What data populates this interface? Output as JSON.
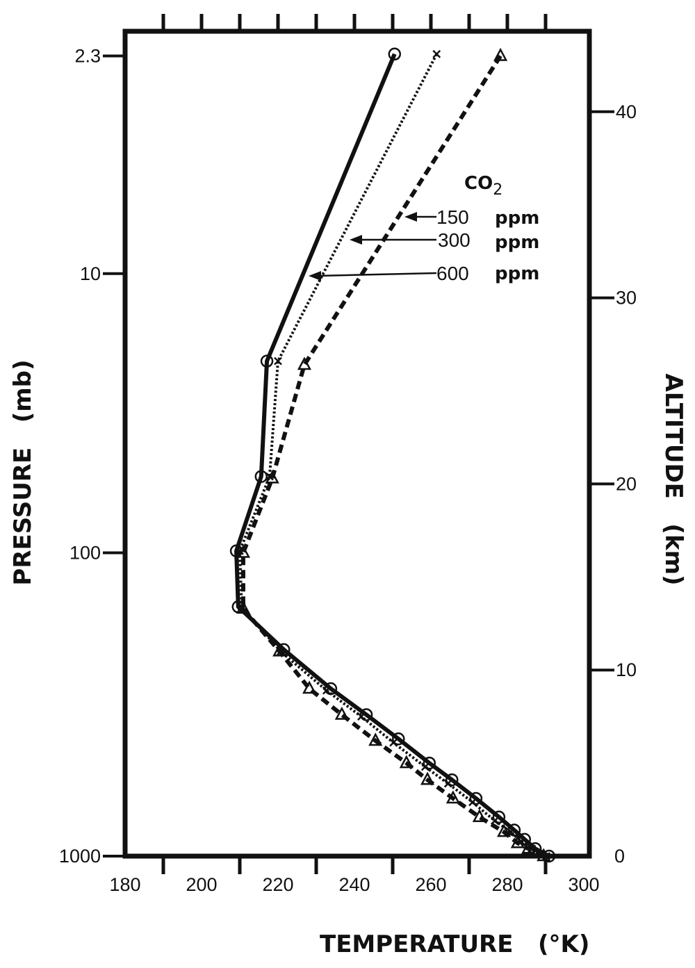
{
  "chart_data": {
    "type": "line",
    "xlabel": "TEMPERATURE   (°K)",
    "ylabel": "PRESSURE   (mb)",
    "y2label": "ALTITUDE   (km)",
    "xlim": [
      180,
      300
    ],
    "x_ticks": [
      180,
      200,
      220,
      240,
      260,
      280,
      300
    ],
    "y2lim": [
      0,
      45
    ],
    "y2_ticks": [
      0,
      10,
      20,
      30,
      40
    ],
    "pressure_ticks": [
      {
        "label": "2.3",
        "altitude_km": 43.0
      },
      {
        "label": "10",
        "altitude_km": 31.3
      },
      {
        "label": "100",
        "altitude_km": 16.3
      },
      {
        "label": "1000",
        "altitude_km": 0
      }
    ],
    "legend_title": "CO",
    "legend_title_sub": "2",
    "legend_placement": "top-right",
    "grid": false,
    "series": [
      {
        "name": "150",
        "unit": "ppm",
        "style": "dashed",
        "marker": "triangle",
        "points": [
          [
            278.2,
            43.0
          ],
          [
            226.9,
            26.4
          ],
          [
            218.5,
            20.3
          ],
          [
            210.9,
            16.3
          ],
          [
            210.9,
            13.3
          ],
          [
            220.4,
            11.0
          ],
          [
            228.2,
            9.0
          ],
          [
            236.7,
            7.6
          ],
          [
            245.5,
            6.2
          ],
          [
            253.6,
            5.0
          ],
          [
            259.1,
            4.1
          ],
          [
            265.8,
            3.1
          ],
          [
            272.7,
            2.1
          ],
          [
            279.1,
            1.3
          ],
          [
            282.7,
            0.7
          ],
          [
            285.5,
            0.4
          ],
          [
            289.5,
            0
          ]
        ]
      },
      {
        "name": "300",
        "unit": "ppm",
        "style": "dotted",
        "marker": "x",
        "points": [
          [
            261.5,
            43.1
          ],
          [
            220.0,
            26.6
          ],
          [
            217.8,
            20.4
          ],
          [
            210.0,
            16.4
          ],
          [
            210.5,
            13.4
          ],
          [
            220.7,
            11.0
          ],
          [
            232.7,
            8.9
          ],
          [
            241.8,
            7.5
          ],
          [
            250.2,
            6.1
          ],
          [
            258.5,
            4.8
          ],
          [
            264.5,
            3.9
          ],
          [
            270.9,
            2.9
          ],
          [
            276.7,
            1.9
          ],
          [
            280.9,
            1.3
          ],
          [
            283.6,
            0.8
          ],
          [
            286.4,
            0.4
          ],
          [
            290.2,
            0
          ]
        ]
      },
      {
        "name": "600",
        "unit": "ppm",
        "style": "solid",
        "marker": "circle",
        "points": [
          [
            250.5,
            43.1
          ],
          [
            217.1,
            26.6
          ],
          [
            215.6,
            20.4
          ],
          [
            209.1,
            16.4
          ],
          [
            209.6,
            13.4
          ],
          [
            221.5,
            11.1
          ],
          [
            233.8,
            9.0
          ],
          [
            243.1,
            7.6
          ],
          [
            251.5,
            6.3
          ],
          [
            259.6,
            5.0
          ],
          [
            265.5,
            4.1
          ],
          [
            271.8,
            3.1
          ],
          [
            277.8,
            2.1
          ],
          [
            281.8,
            1.4
          ],
          [
            284.5,
            0.9
          ],
          [
            287.3,
            0.4
          ],
          [
            290.9,
            0
          ]
        ]
      }
    ]
  }
}
